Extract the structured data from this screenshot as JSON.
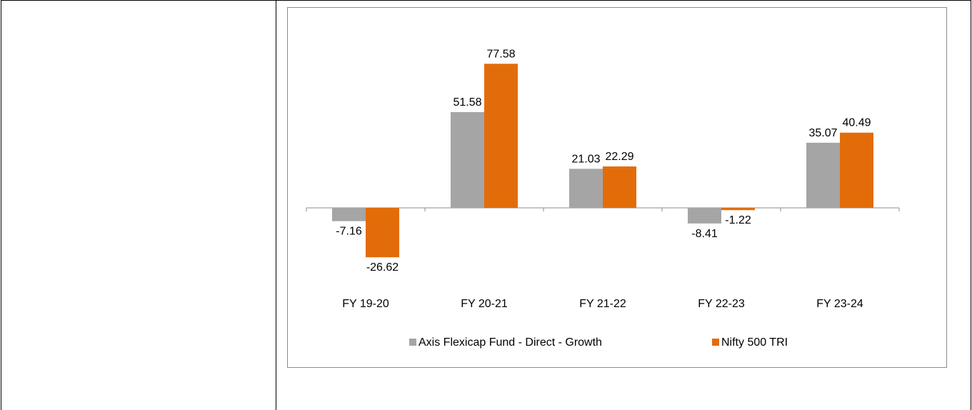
{
  "colors": {
    "series_1": "#a5a5a5",
    "series_2": "#e36c0a"
  },
  "chart_data": {
    "type": "bar",
    "categories": [
      "FY 19-20",
      "FY 20-21",
      "FY 21-22",
      "FY 22-23",
      "FY 23-24"
    ],
    "series": [
      {
        "name": "Axis Flexicap Fund - Direct - Growth",
        "values": [
          -7.16,
          51.58,
          21.03,
          -8.41,
          35.07
        ]
      },
      {
        "name": "Nifty 500 TRI",
        "values": [
          -26.62,
          77.58,
          22.29,
          -1.22,
          40.49
        ]
      }
    ],
    "data_labels": [
      [
        "-7.16",
        "51.58",
        "21.03",
        "-8.41",
        "35.07"
      ],
      [
        "-26.62",
        "77.58",
        "22.29",
        "-1.22",
        "40.49"
      ]
    ],
    "title": "",
    "xlabel": "",
    "ylabel": "",
    "ylim": [
      -30,
      90
    ],
    "grid": false,
    "legend": "bottom"
  }
}
